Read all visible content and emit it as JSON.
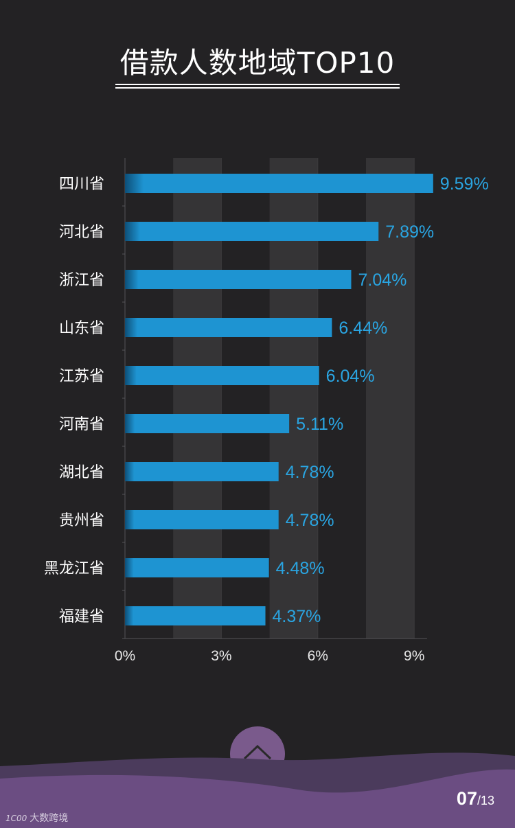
{
  "chart_data": {
    "type": "bar",
    "orientation": "horizontal",
    "title": "借款人数地域TOP10",
    "categories": [
      "四川省",
      "河北省",
      "浙江省",
      "山东省",
      "江苏省",
      "河南省",
      "湖北省",
      "贵州省",
      "黑龙江省",
      "福建省"
    ],
    "values": [
      9.59,
      7.89,
      7.04,
      6.44,
      6.04,
      5.11,
      4.78,
      4.78,
      4.48,
      4.37
    ],
    "value_labels": [
      "9.59%",
      "7.89%",
      "7.04%",
      "6.44%",
      "6.04%",
      "5.11%",
      "4.78%",
      "4.78%",
      "4.48%",
      "4.37%"
    ],
    "xticks": [
      "0%",
      "3%",
      "6%",
      "9%"
    ],
    "xtick_values": [
      0,
      3,
      6,
      9
    ],
    "xlim": [
      0,
      9.4
    ],
    "grid": "alternating vertical bands",
    "colors": {
      "bar": "#1e94d2",
      "label": "#2aa5e2",
      "band": "#353436"
    }
  },
  "footer": {
    "page_current": "07",
    "page_total": "/13",
    "watermark_logo": "1C00",
    "watermark_text": "大数跨境"
  },
  "icons": {
    "scroll_up": "chevron-up-icon"
  }
}
